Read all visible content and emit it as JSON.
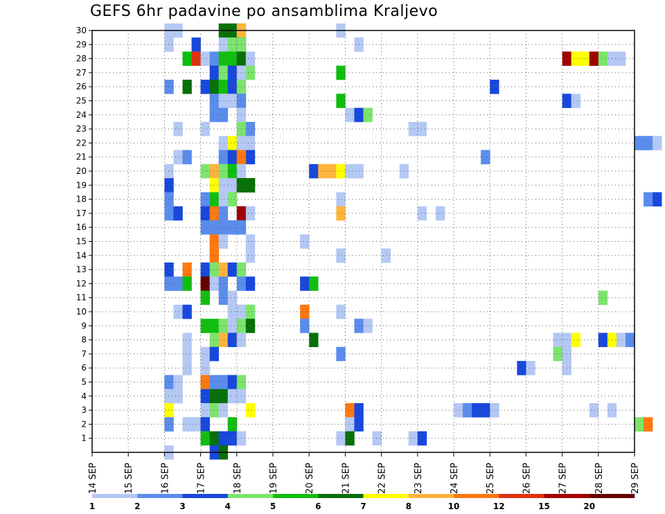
{
  "chart_data": {
    "type": "heatmap",
    "title": "GEFS 6hr padavine po ansamblima Kraljevo",
    "x_ticks": [
      "14 SEP",
      "15 SEP",
      "16 SEP",
      "17 SEP",
      "18 SEP",
      "19 SEP",
      "20 SEP",
      "21 SEP",
      "22 SEP",
      "23 SEP",
      "24 SEP",
      "25 SEP",
      "26 SEP",
      "27 SEP",
      "28 SEP",
      "29 SEP"
    ],
    "y_ticks": [
      1,
      2,
      3,
      4,
      5,
      6,
      7,
      8,
      9,
      10,
      11,
      12,
      13,
      14,
      15,
      16,
      17,
      18,
      19,
      20,
      21,
      22,
      23,
      24,
      25,
      26,
      27,
      28,
      29,
      30
    ],
    "xlim": [
      "14 SEP 00Z",
      "29 SEP 00Z"
    ],
    "ylim": [
      0,
      30
    ],
    "grid": true,
    "levels": [
      "1",
      "2",
      "3",
      "4",
      "5",
      "6",
      "7",
      "8",
      "10",
      "12",
      "15",
      "20"
    ],
    "colors": [
      "#b4c8f4",
      "#5a8cec",
      "#1848dc",
      "#7ce46c",
      "#10be10",
      "#087008",
      "#ffff00",
      "#ffb43c",
      "#ff7810",
      "#e1320f",
      "#a00000",
      "#640000"
    ],
    "cell_note": "each cell: [member, day_index_from_14_SEP, six_hour_slot, color_class_index]",
    "cells": [
      [
        30,
        2,
        0,
        0
      ],
      [
        30,
        2,
        1,
        0
      ],
      [
        30,
        3,
        2,
        5
      ],
      [
        30,
        3,
        3,
        5
      ],
      [
        30,
        3,
        4,
        1
      ],
      [
        30,
        4,
        0,
        7
      ],
      [
        30,
        6,
        3,
        0
      ],
      [
        29,
        2,
        0,
        0
      ],
      [
        29,
        2,
        3,
        2
      ],
      [
        29,
        3,
        2,
        0
      ],
      [
        29,
        3,
        3,
        3
      ],
      [
        29,
        3,
        4,
        5
      ],
      [
        29,
        4,
        0,
        3
      ],
      [
        29,
        7,
        1,
        0
      ],
      [
        28,
        2,
        2,
        4
      ],
      [
        28,
        2,
        3,
        9
      ],
      [
        28,
        3,
        0,
        0
      ],
      [
        28,
        3,
        1,
        1
      ],
      [
        28,
        3,
        2,
        4
      ],
      [
        28,
        3,
        3,
        4
      ],
      [
        28,
        3,
        4,
        5
      ],
      [
        28,
        3,
        5,
        0
      ],
      [
        28,
        13,
        0,
        10
      ],
      [
        28,
        13,
        1,
        6
      ],
      [
        28,
        13,
        2,
        6
      ],
      [
        28,
        13,
        3,
        10
      ],
      [
        28,
        14,
        0,
        3
      ],
      [
        28,
        14,
        1,
        0
      ],
      [
        28,
        14,
        2,
        0
      ],
      [
        27,
        3,
        1,
        2
      ],
      [
        27,
        3,
        2,
        3
      ],
      [
        27,
        3,
        3,
        2
      ],
      [
        27,
        3,
        4,
        1
      ],
      [
        27,
        3,
        5,
        3
      ],
      [
        27,
        4,
        0,
        0
      ],
      [
        27,
        6,
        3,
        4
      ],
      [
        26,
        2,
        0,
        1
      ],
      [
        26,
        2,
        2,
        5
      ],
      [
        26,
        3,
        0,
        2
      ],
      [
        26,
        3,
        1,
        5
      ],
      [
        26,
        3,
        2,
        4
      ],
      [
        26,
        3,
        3,
        2
      ],
      [
        26,
        3,
        4,
        3
      ],
      [
        26,
        4,
        0,
        3
      ],
      [
        26,
        11,
        0,
        2
      ],
      [
        25,
        3,
        1,
        1
      ],
      [
        25,
        3,
        2,
        0
      ],
      [
        25,
        3,
        3,
        0
      ],
      [
        25,
        3,
        4,
        3
      ],
      [
        25,
        4,
        0,
        1
      ],
      [
        25,
        6,
        3,
        4
      ],
      [
        25,
        13,
        0,
        2
      ],
      [
        25,
        13,
        1,
        0
      ],
      [
        24,
        3,
        1,
        1
      ],
      [
        24,
        3,
        2,
        1
      ],
      [
        24,
        4,
        0,
        0
      ],
      [
        24,
        7,
        0,
        0
      ],
      [
        24,
        7,
        1,
        2
      ],
      [
        24,
        7,
        2,
        3
      ],
      [
        23,
        2,
        1,
        0
      ],
      [
        23,
        3,
        0,
        0
      ],
      [
        23,
        4,
        0,
        3
      ],
      [
        23,
        4,
        1,
        1
      ],
      [
        23,
        8,
        3,
        0
      ],
      [
        23,
        8,
        4,
        0
      ],
      [
        22,
        3,
        2,
        0
      ],
      [
        22,
        3,
        3,
        6
      ],
      [
        22,
        3,
        4,
        0
      ],
      [
        22,
        3,
        5,
        0
      ],
      [
        22,
        15,
        0,
        1
      ],
      [
        22,
        15,
        1,
        1
      ],
      [
        22,
        15,
        2,
        0
      ],
      [
        21,
        2,
        1,
        0
      ],
      [
        21,
        2,
        2,
        1
      ],
      [
        21,
        3,
        2,
        1
      ],
      [
        21,
        3,
        3,
        2
      ],
      [
        21,
        3,
        4,
        7
      ],
      [
        21,
        3,
        5,
        2
      ],
      [
        21,
        4,
        0,
        8
      ],
      [
        21,
        10,
        3,
        1
      ],
      [
        20,
        2,
        0,
        0
      ],
      [
        20,
        3,
        0,
        3
      ],
      [
        20,
        3,
        1,
        7
      ],
      [
        20,
        3,
        2,
        3
      ],
      [
        20,
        3,
        3,
        4
      ],
      [
        20,
        3,
        4,
        3
      ],
      [
        20,
        4,
        0,
        0
      ],
      [
        20,
        6,
        0,
        2
      ],
      [
        20,
        6,
        1,
        7
      ],
      [
        20,
        6,
        2,
        7
      ],
      [
        20,
        6,
        3,
        6
      ],
      [
        20,
        7,
        0,
        0
      ],
      [
        20,
        7,
        1,
        0
      ],
      [
        20,
        8,
        2,
        0
      ],
      [
        19,
        2,
        0,
        2
      ],
      [
        19,
        3,
        1,
        6
      ],
      [
        19,
        3,
        2,
        0
      ],
      [
        19,
        3,
        3,
        0
      ],
      [
        19,
        3,
        4,
        10
      ],
      [
        19,
        3,
        5,
        5
      ],
      [
        19,
        4,
        0,
        5
      ],
      [
        19,
        4,
        1,
        5
      ],
      [
        18,
        2,
        0,
        1
      ],
      [
        18,
        3,
        0,
        1
      ],
      [
        18,
        3,
        1,
        4
      ],
      [
        18,
        3,
        2,
        0
      ],
      [
        18,
        3,
        3,
        3
      ],
      [
        18,
        6,
        3,
        0
      ],
      [
        18,
        15,
        1,
        1
      ],
      [
        18,
        15,
        2,
        2
      ],
      [
        17,
        2,
        0,
        1
      ],
      [
        17,
        2,
        1,
        2
      ],
      [
        17,
        3,
        0,
        2
      ],
      [
        17,
        3,
        1,
        8
      ],
      [
        17,
        3,
        2,
        1
      ],
      [
        17,
        3,
        4,
        1
      ],
      [
        17,
        4,
        0,
        10
      ],
      [
        17,
        4,
        1,
        0
      ],
      [
        17,
        6,
        3,
        7
      ],
      [
        17,
        8,
        4,
        0
      ],
      [
        17,
        9,
        2,
        0
      ],
      [
        16,
        3,
        0,
        1
      ],
      [
        16,
        3,
        1,
        1
      ],
      [
        16,
        3,
        2,
        1
      ],
      [
        16,
        3,
        3,
        1
      ],
      [
        16,
        4,
        0,
        1
      ],
      [
        15,
        3,
        1,
        8
      ],
      [
        15,
        3,
        2,
        0
      ],
      [
        15,
        4,
        1,
        0
      ],
      [
        15,
        5,
        3,
        0
      ],
      [
        14,
        3,
        1,
        8
      ],
      [
        14,
        4,
        1,
        0
      ],
      [
        14,
        6,
        3,
        0
      ],
      [
        14,
        8,
        0,
        0
      ],
      [
        13,
        2,
        0,
        2
      ],
      [
        13,
        2,
        2,
        8
      ],
      [
        13,
        3,
        0,
        2
      ],
      [
        13,
        3,
        1,
        3
      ],
      [
        13,
        3,
        2,
        7
      ],
      [
        13,
        3,
        3,
        2
      ],
      [
        13,
        3,
        4,
        0
      ],
      [
        13,
        4,
        0,
        3
      ],
      [
        12,
        2,
        0,
        1
      ],
      [
        12,
        2,
        1,
        1
      ],
      [
        12,
        2,
        2,
        4
      ],
      [
        12,
        3,
        0,
        11
      ],
      [
        12,
        3,
        1,
        0
      ],
      [
        12,
        3,
        2,
        1
      ],
      [
        12,
        4,
        0,
        1
      ],
      [
        12,
        4,
        1,
        2
      ],
      [
        12,
        5,
        3,
        2
      ],
      [
        12,
        6,
        0,
        4
      ],
      [
        11,
        3,
        0,
        4
      ],
      [
        11,
        3,
        2,
        1
      ],
      [
        11,
        3,
        3,
        0
      ],
      [
        11,
        14,
        0,
        3
      ],
      [
        10,
        2,
        1,
        0
      ],
      [
        10,
        2,
        2,
        2
      ],
      [
        10,
        3,
        3,
        0
      ],
      [
        10,
        3,
        4,
        0
      ],
      [
        10,
        4,
        0,
        0
      ],
      [
        10,
        4,
        1,
        3
      ],
      [
        10,
        5,
        3,
        8
      ],
      [
        10,
        6,
        3,
        0
      ],
      [
        9,
        3,
        0,
        4
      ],
      [
        9,
        3,
        1,
        4
      ],
      [
        9,
        3,
        2,
        3
      ],
      [
        9,
        3,
        3,
        0
      ],
      [
        9,
        3,
        4,
        3
      ],
      [
        9,
        3,
        5,
        5
      ],
      [
        9,
        5,
        3,
        1
      ],
      [
        9,
        7,
        1,
        1
      ],
      [
        9,
        7,
        2,
        0
      ],
      [
        8,
        2,
        2,
        0
      ],
      [
        8,
        3,
        1,
        3
      ],
      [
        8,
        3,
        2,
        7
      ],
      [
        8,
        3,
        3,
        2
      ],
      [
        8,
        3,
        4,
        6
      ],
      [
        8,
        4,
        0,
        0
      ],
      [
        8,
        6,
        0,
        5
      ],
      [
        8,
        12,
        3,
        0
      ],
      [
        8,
        13,
        0,
        0
      ],
      [
        8,
        13,
        1,
        6
      ],
      [
        8,
        14,
        0,
        2
      ],
      [
        8,
        14,
        1,
        6
      ],
      [
        8,
        14,
        2,
        0
      ],
      [
        8,
        14,
        3,
        1
      ],
      [
        7,
        2,
        2,
        0
      ],
      [
        7,
        3,
        0,
        0
      ],
      [
        7,
        3,
        1,
        2
      ],
      [
        7,
        6,
        3,
        1
      ],
      [
        7,
        12,
        3,
        3
      ],
      [
        7,
        13,
        0,
        0
      ],
      [
        6,
        2,
        2,
        0
      ],
      [
        6,
        3,
        0,
        0
      ],
      [
        6,
        11,
        3,
        2
      ],
      [
        6,
        11,
        4,
        0
      ],
      [
        6,
        13,
        0,
        0
      ],
      [
        5,
        2,
        0,
        1
      ],
      [
        5,
        2,
        1,
        0
      ],
      [
        5,
        3,
        0,
        8
      ],
      [
        5,
        3,
        1,
        1
      ],
      [
        5,
        3,
        2,
        1
      ],
      [
        5,
        3,
        3,
        2
      ],
      [
        5,
        4,
        0,
        3
      ],
      [
        4,
        2,
        0,
        0
      ],
      [
        4,
        2,
        1,
        0
      ],
      [
        4,
        3,
        0,
        2
      ],
      [
        4,
        3,
        1,
        5
      ],
      [
        4,
        3,
        2,
        5
      ],
      [
        4,
        3,
        3,
        0
      ],
      [
        4,
        4,
        0,
        0
      ],
      [
        3,
        2,
        0,
        6
      ],
      [
        3,
        3,
        0,
        0
      ],
      [
        3,
        3,
        1,
        3
      ],
      [
        3,
        3,
        2,
        0
      ],
      [
        3,
        4,
        1,
        6
      ],
      [
        3,
        7,
        0,
        8
      ],
      [
        3,
        7,
        1,
        2
      ],
      [
        3,
        10,
        0,
        0
      ],
      [
        3,
        10,
        1,
        1
      ],
      [
        3,
        10,
        2,
        2
      ],
      [
        3,
        10,
        3,
        2
      ],
      [
        3,
        10,
        4,
        2
      ],
      [
        3,
        11,
        0,
        0
      ],
      [
        3,
        13,
        3,
        0
      ],
      [
        3,
        14,
        1,
        0
      ],
      [
        2,
        1,
        4,
        0
      ],
      [
        2,
        2,
        0,
        1
      ],
      [
        2,
        2,
        2,
        0
      ],
      [
        2,
        2,
        3,
        0
      ],
      [
        2,
        3,
        0,
        2
      ],
      [
        2,
        3,
        3,
        4
      ],
      [
        2,
        7,
        0,
        0
      ],
      [
        2,
        7,
        1,
        2
      ],
      [
        2,
        15,
        0,
        3
      ],
      [
        2,
        15,
        1,
        8
      ],
      [
        1,
        3,
        0,
        4
      ],
      [
        1,
        3,
        1,
        5
      ],
      [
        1,
        3,
        2,
        2
      ],
      [
        1,
        3,
        3,
        2
      ],
      [
        1,
        4,
        0,
        0
      ],
      [
        1,
        6,
        3,
        0
      ],
      [
        1,
        7,
        0,
        5
      ],
      [
        1,
        7,
        3,
        0
      ],
      [
        1,
        8,
        3,
        0
      ],
      [
        1,
        9,
        0,
        2
      ],
      [
        0,
        2,
        0,
        0
      ],
      [
        0,
        3,
        1,
        2
      ],
      [
        0,
        3,
        2,
        5
      ]
    ]
  }
}
